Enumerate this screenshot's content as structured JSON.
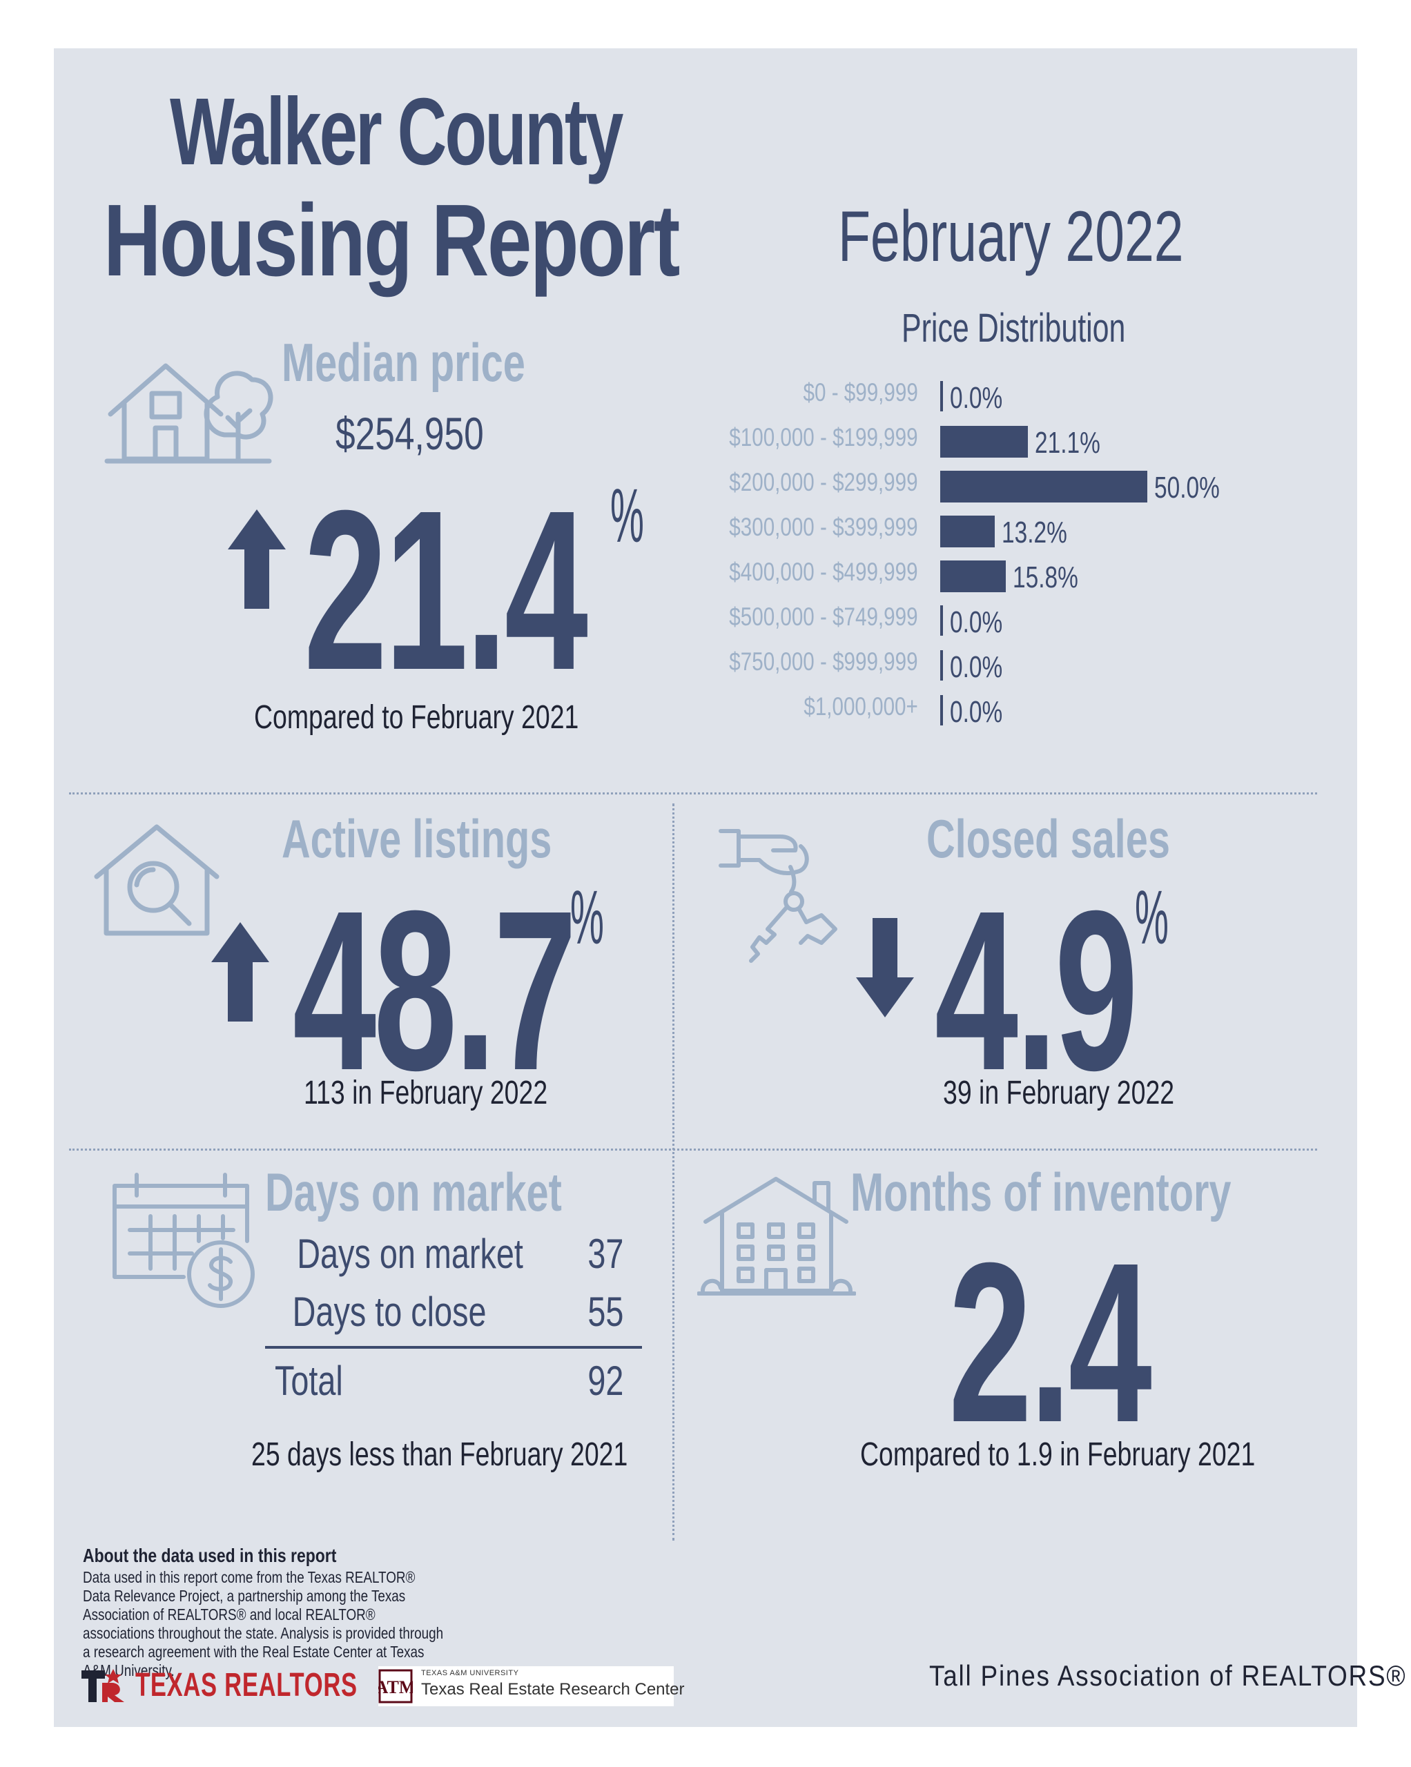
{
  "header": {
    "title_line1": "Walker County",
    "title_line2": "Housing Report",
    "month": "February 2022"
  },
  "median": {
    "heading": "Median price",
    "price": "$254,950",
    "change": "21.4",
    "percent_sign": "%",
    "direction": "up",
    "compare": "Compared to February 2021"
  },
  "price_distribution": {
    "title": "Price Distribution",
    "rows": [
      {
        "range": "$0 - $99,999",
        "value": "0.0%"
      },
      {
        "range": "$100,000 - $199,999",
        "value": "21.1%"
      },
      {
        "range": "$200,000 - $299,999",
        "value": "50.0%"
      },
      {
        "range": "$300,000 - $399,999",
        "value": "13.2%"
      },
      {
        "range": "$400,000 - $499,999",
        "value": "15.8%"
      },
      {
        "range": "$500,000 - $749,999",
        "value": "0.0%"
      },
      {
        "range": "$750,000 - $999,999",
        "value": "0.0%"
      },
      {
        "range": "$1,000,000+",
        "value": "0.0%"
      }
    ],
    "percents": [
      0.0,
      21.1,
      50.0,
      13.2,
      15.8,
      0.0,
      0.0,
      0.0
    ]
  },
  "active": {
    "heading": "Active listings",
    "change": "48.7",
    "percent_sign": "%",
    "direction": "up",
    "sub": "113 in February 2022"
  },
  "closed": {
    "heading": "Closed sales",
    "change": "4.9",
    "percent_sign": "%",
    "direction": "down",
    "sub": "39 in February 2022"
  },
  "days": {
    "heading": "Days on market",
    "rows": [
      {
        "label": "Days on market",
        "value": "37"
      },
      {
        "label": "Days to close",
        "value": "55"
      }
    ],
    "total_label": "Total",
    "total_value": "92",
    "sub": "25 days less than February 2021"
  },
  "inventory": {
    "heading": "Months of inventory",
    "value": "2.4",
    "sub": "Compared to 1.9 in February 2021"
  },
  "about": {
    "title": "About the data used in this report",
    "text": "Data used in this report come from the Texas REALTOR® Data Relevance Project, a partnership among the Texas Association of REALTORS® and local REALTOR® associations throughout the state. Analysis is provided through a research agreement with the Real Estate Center at Texas A&M University."
  },
  "footer": {
    "texas_realtors": "TEXAS REALTORS",
    "am_small": "TEXAS A&M UNIVERSITY",
    "am_name": "Texas Real Estate Research Center",
    "association": "Tall Pines Association of REALTORS®"
  },
  "colors": {
    "navy": "#3d4b6e",
    "pale_blue": "#9eb1c8",
    "panel": "#dfe3ea",
    "brand_red": "#c0272d"
  },
  "icons": [
    "house-tree-icon",
    "house-search-icon",
    "hand-keys-icon",
    "calendar-dollar-icon",
    "apartment-building-icon",
    "arrow-up-icon",
    "arrow-down-icon"
  ]
}
